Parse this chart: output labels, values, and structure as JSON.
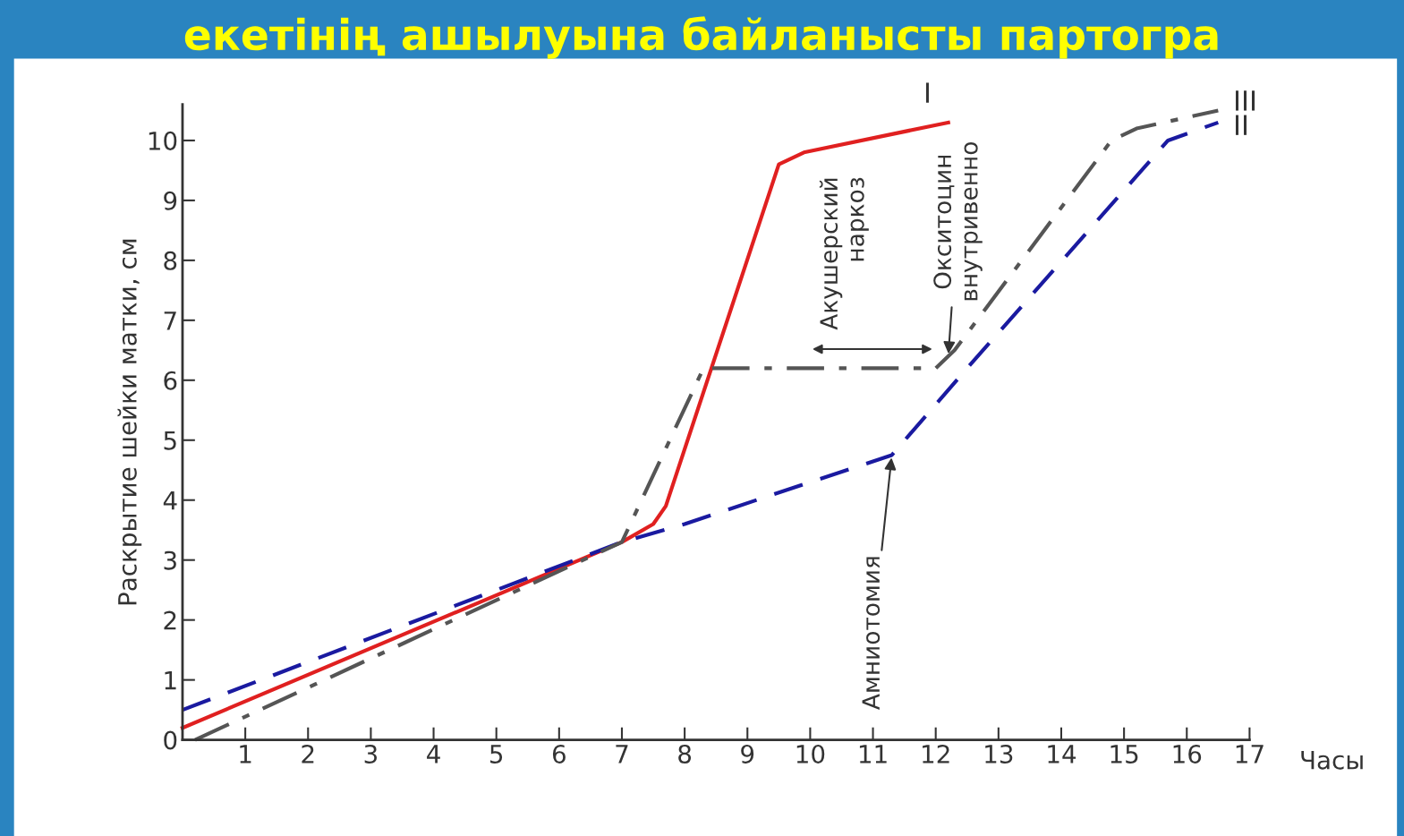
{
  "chart_data": {
    "type": "line",
    "title": "екетінің ашылуына байланысты партогра",
    "xlabel": "Часы",
    "ylabel": "Раскрытие шейки матки, см",
    "xlim": [
      0,
      17
    ],
    "ylim": [
      0,
      10.6
    ],
    "xticks": [
      1,
      2,
      3,
      4,
      5,
      6,
      7,
      8,
      9,
      10,
      11,
      12,
      13,
      14,
      15,
      16,
      17
    ],
    "yticks": [
      0,
      1,
      2,
      3,
      4,
      5,
      6,
      7,
      8,
      9,
      10
    ],
    "grid": false,
    "legend": false,
    "marker": "none",
    "series": [
      {
        "name": "I",
        "color": "#e02020",
        "line_style": "solid",
        "x": [
          0,
          7,
          7.5,
          7.7,
          9.5,
          9.9,
          12.2
        ],
        "values": [
          0.2,
          3.3,
          3.6,
          3.9,
          9.6,
          9.8,
          10.3
        ]
      },
      {
        "name": "II",
        "color": "#1a1aa0",
        "line_style": "dashed",
        "x": [
          0,
          7,
          8,
          10,
          11.3,
          12.5,
          15.7,
          16.5
        ],
        "values": [
          0.5,
          3.3,
          3.6,
          4.3,
          4.75,
          6.2,
          10.0,
          10.3
        ]
      },
      {
        "name": "III",
        "color": "#555555",
        "line_style": "dashdot",
        "x": [
          0.2,
          7,
          8.3,
          12,
          12.3,
          14.8,
          15.2,
          16.5
        ],
        "values": [
          0,
          3.3,
          6.2,
          6.2,
          6.5,
          10.0,
          10.2,
          10.5
        ]
      }
    ],
    "annotations": [
      "Акушерский наркоз",
      {
        "text": "Окситоцин внутривенно",
        "x": 12.2,
        "y": 6.4
      },
      {
        "text": "Амниотомия",
        "x": 11.3,
        "y": 4.75
      }
    ]
  }
}
